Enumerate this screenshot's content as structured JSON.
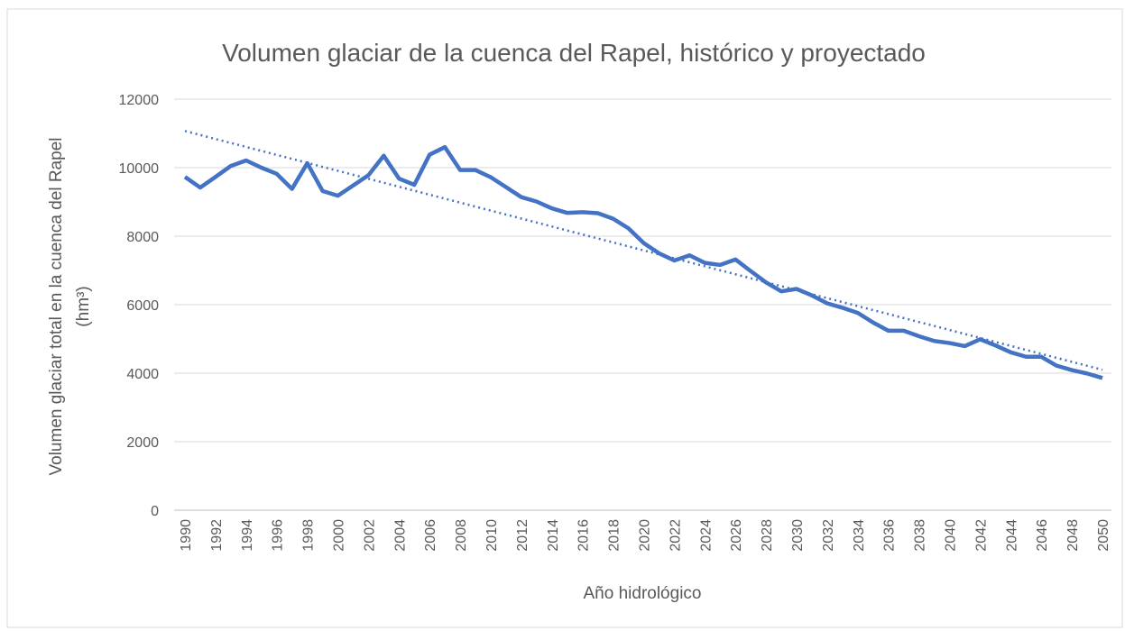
{
  "chart_data": {
    "type": "line",
    "title": "Volumen glaciar de la cuenca del Rapel, histórico y proyectado",
    "xlabel": "Año hidrológico",
    "ylabel": [
      "Volumen glaciar total en la cuenca del Rapel",
      "(hm³)"
    ],
    "x": [
      1990,
      1991,
      1992,
      1993,
      1994,
      1995,
      1996,
      1997,
      1998,
      1999,
      2000,
      2001,
      2002,
      2003,
      2004,
      2005,
      2006,
      2007,
      2008,
      2009,
      2010,
      2011,
      2012,
      2013,
      2014,
      2015,
      2016,
      2017,
      2018,
      2019,
      2020,
      2021,
      2022,
      2023,
      2024,
      2025,
      2026,
      2027,
      2028,
      2029,
      2030,
      2031,
      2032,
      2033,
      2034,
      2035,
      2036,
      2037,
      2038,
      2039,
      2040,
      2041,
      2042,
      2043,
      2044,
      2045,
      2046,
      2047,
      2048,
      2049,
      2050
    ],
    "series": [
      {
        "color": "#4472c4",
        "values": [
          9730,
          9420,
          9730,
          10050,
          10210,
          10000,
          9820,
          9380,
          10130,
          9320,
          9180,
          9480,
          9780,
          10350,
          9680,
          9500,
          10380,
          10600,
          9930,
          9930,
          9720,
          9430,
          9140,
          9010,
          8810,
          8680,
          8700,
          8670,
          8510,
          8230,
          7800,
          7500,
          7290,
          7440,
          7220,
          7160,
          7320,
          6980,
          6650,
          6390,
          6460,
          6270,
          6040,
          5910,
          5760,
          5480,
          5240,
          5240,
          5080,
          4940,
          4880,
          4790,
          4990,
          4810,
          4610,
          4480,
          4480,
          4220,
          4090,
          3990,
          3860
        ]
      }
    ],
    "trend": {
      "x": [
        1990,
        2050
      ],
      "values": [
        11070,
        4100
      ],
      "color": "#4472c4",
      "style": "dotted"
    },
    "xlim": [
      1990,
      2050
    ],
    "xticks": [
      1990,
      1992,
      1994,
      1996,
      1998,
      2000,
      2002,
      2004,
      2006,
      2008,
      2010,
      2012,
      2014,
      2016,
      2018,
      2020,
      2022,
      2024,
      2026,
      2028,
      2030,
      2032,
      2034,
      2036,
      2038,
      2040,
      2042,
      2044,
      2046,
      2048,
      2050
    ],
    "ylim": [
      0,
      12000
    ],
    "yticks": [
      0,
      2000,
      4000,
      6000,
      8000,
      10000,
      12000
    ],
    "grid": true
  }
}
